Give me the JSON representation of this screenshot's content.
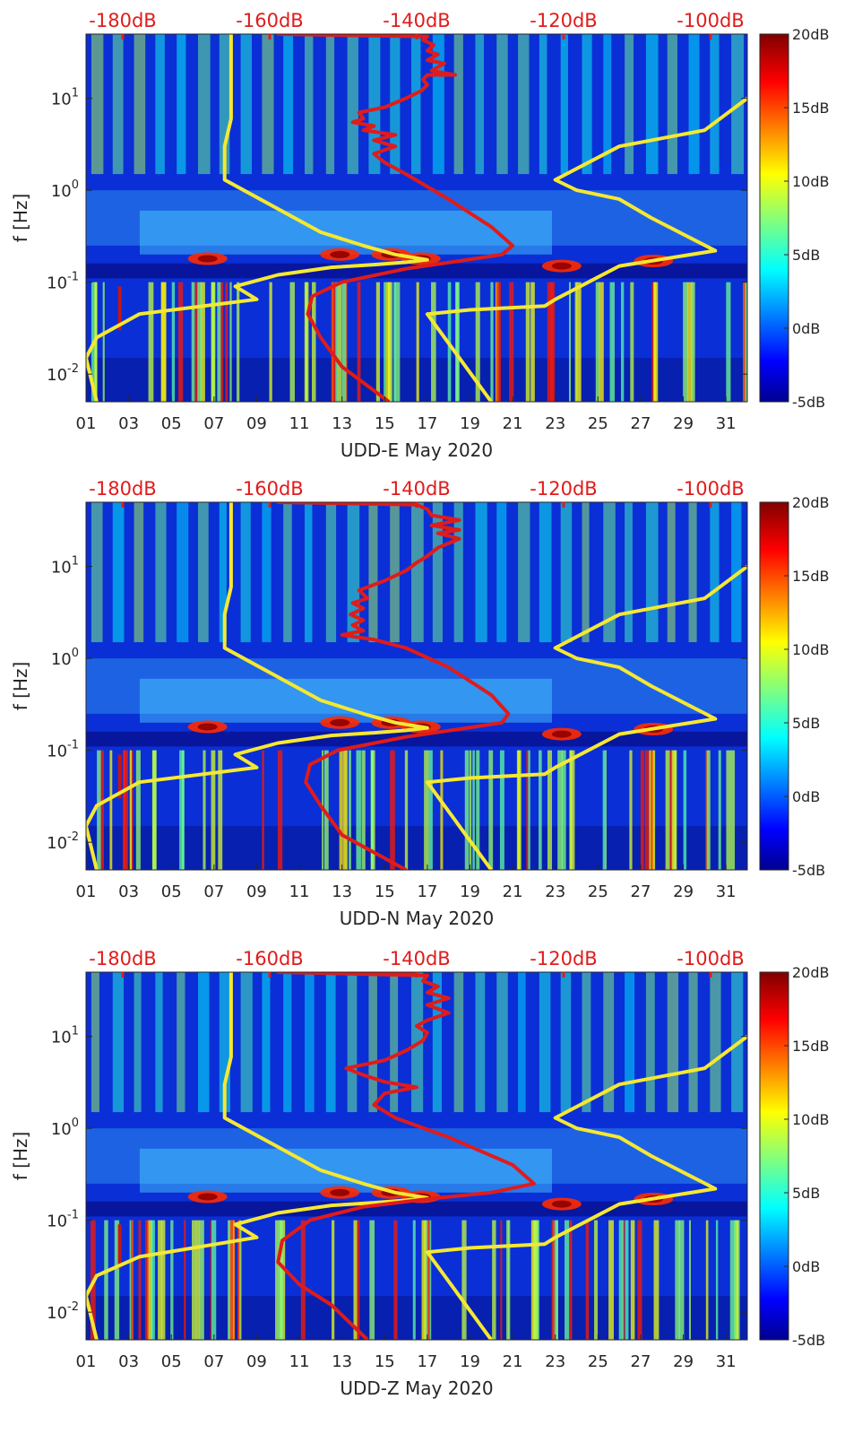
{
  "chart_data": [
    {
      "type": "heatmap",
      "xlabel": "UDD-E May 2020",
      "ylabel": "f [Hz]",
      "x_ticks": [
        "01",
        "03",
        "05",
        "07",
        "09",
        "11",
        "13",
        "15",
        "17",
        "19",
        "21",
        "23",
        "25",
        "27",
        "29",
        "31"
      ],
      "x_range_days": [
        1,
        32
      ],
      "y_scale": "log",
      "ylim": [
        0.005,
        50
      ],
      "y_ticks": [
        {
          "v": 0.01,
          "b": "10",
          "e": "-2"
        },
        {
          "v": 0.1,
          "b": "10",
          "e": "-1"
        },
        {
          "v": 1,
          "b": "10",
          "e": "0"
        },
        {
          "v": 10,
          "b": "10",
          "e": "1"
        }
      ],
      "colorbar": {
        "colormap": "jet",
        "range": [
          -5,
          20
        ],
        "ticks": [
          "20dB",
          "15dB",
          "10dB",
          "5dB",
          "0dB",
          "-5dB"
        ]
      },
      "top_axis": {
        "color": "#e01b1b",
        "range_db": [
          -185,
          -95
        ],
        "ticks": [
          "-180dB",
          "-160dB",
          "-140dB",
          "-120dB",
          "-100dB"
        ]
      },
      "series": [
        {
          "color": "#f5e832",
          "x": [
            1.5,
            1.0,
            1.5,
            3.5,
            9.0,
            8.0,
            10.0,
            12.5,
            14.5,
            16.0,
            17.0,
            15.5,
            14.0,
            12.0,
            7.5,
            7.5,
            7.8,
            7.8,
            7.8
          ],
          "y": [
            0.005,
            0.015,
            0.025,
            0.045,
            0.065,
            0.09,
            0.12,
            0.145,
            0.155,
            0.165,
            0.175,
            0.2,
            0.25,
            0.35,
            1.3,
            3.0,
            6.0,
            10.0,
            50.0
          ]
        },
        {
          "color": "#f5e832",
          "x": [
            20.0,
            17.0,
            19.0,
            22.5,
            23.0,
            26.0,
            30.5,
            27.5,
            26.0,
            24.0,
            23.0,
            26.0,
            30.0,
            32.0
          ],
          "y": [
            0.005,
            0.045,
            0.05,
            0.055,
            0.065,
            0.15,
            0.22,
            0.5,
            0.8,
            1.0,
            1.3,
            3.0,
            4.5,
            10.0
          ]
        },
        {
          "color": "#e01b1b",
          "x": [
            15.2,
            13.0,
            12.0,
            11.4,
            11.6,
            13.0,
            16.0,
            18.5,
            20.5,
            21.0,
            20.0,
            18.0,
            16.0,
            15.0,
            14.5,
            15.5,
            14.5,
            15.5,
            14.0,
            14.5,
            13.5,
            14.0,
            13.8,
            15.0,
            16.0,
            16.7,
            17.0,
            16.8,
            17.0,
            18.3,
            17.2,
            17.8,
            17.0,
            17.5,
            17.0,
            17.3,
            16.8,
            17.0,
            10.0,
            11.5,
            15.0,
            16.5
          ],
          "y": [
            0.005,
            0.012,
            0.025,
            0.045,
            0.07,
            0.1,
            0.14,
            0.17,
            0.2,
            0.25,
            0.4,
            0.8,
            1.5,
            2.0,
            2.5,
            3.0,
            3.5,
            4.0,
            4.5,
            5.0,
            5.5,
            6.0,
            7.0,
            8.0,
            10.0,
            12.0,
            14.0,
            16.0,
            18.0,
            18.0,
            20.0,
            24.0,
            26.0,
            30.0,
            33.0,
            38.0,
            43.0,
            47.0,
            50.0,
            50.0,
            50.0,
            50.0
          ]
        }
      ]
    },
    {
      "type": "heatmap",
      "xlabel": "UDD-N May 2020",
      "ylabel": "f [Hz]",
      "x_ticks": [
        "01",
        "03",
        "05",
        "07",
        "09",
        "11",
        "13",
        "15",
        "17",
        "19",
        "21",
        "23",
        "25",
        "27",
        "29",
        "31"
      ],
      "x_range_days": [
        1,
        32
      ],
      "y_scale": "log",
      "ylim": [
        0.005,
        50
      ],
      "y_ticks": [
        {
          "v": 0.01,
          "b": "10",
          "e": "-2"
        },
        {
          "v": 0.1,
          "b": "10",
          "e": "-1"
        },
        {
          "v": 1,
          "b": "10",
          "e": "0"
        },
        {
          "v": 10,
          "b": "10",
          "e": "1"
        }
      ],
      "colorbar": {
        "colormap": "jet",
        "range": [
          -5,
          20
        ],
        "ticks": [
          "20dB",
          "15dB",
          "10dB",
          "5dB",
          "0dB",
          "-5dB"
        ]
      },
      "top_axis": {
        "color": "#e01b1b",
        "range_db": [
          -185,
          -95
        ],
        "ticks": [
          "-180dB",
          "-160dB",
          "-140dB",
          "-120dB",
          "-100dB"
        ]
      },
      "series": [
        {
          "color": "#f5e832",
          "x": [
            1.5,
            1.0,
            1.5,
            3.5,
            9.0,
            8.0,
            10.0,
            12.5,
            14.5,
            16.0,
            17.0,
            15.5,
            14.0,
            12.0,
            7.5,
            7.5,
            7.8,
            7.8,
            7.8
          ],
          "y": [
            0.005,
            0.015,
            0.025,
            0.045,
            0.065,
            0.09,
            0.12,
            0.145,
            0.155,
            0.165,
            0.175,
            0.2,
            0.25,
            0.35,
            1.3,
            3.0,
            6.0,
            10.0,
            50.0
          ]
        },
        {
          "color": "#f5e832",
          "x": [
            20.0,
            17.0,
            19.0,
            22.5,
            23.0,
            26.0,
            30.5,
            27.5,
            26.0,
            24.0,
            23.0,
            26.0,
            30.0,
            32.0
          ],
          "y": [
            0.005,
            0.045,
            0.05,
            0.055,
            0.065,
            0.15,
            0.22,
            0.5,
            0.8,
            1.0,
            1.3,
            3.0,
            4.5,
            10.0
          ]
        },
        {
          "color": "#e01b1b",
          "x": [
            16.0,
            13.0,
            12.0,
            11.3,
            11.5,
            12.8,
            16.0,
            18.5,
            20.5,
            20.8,
            20.0,
            18.0,
            16.0,
            14.5,
            13.0,
            14.0,
            13.5,
            14.0,
            13.4,
            14.0,
            13.5,
            14.2,
            13.8,
            15.0,
            16.0,
            16.5,
            17.0,
            17.5,
            18.5,
            17.5,
            18.5,
            17.2,
            18.5,
            17.2,
            17.0,
            16.5,
            10.0,
            12.0,
            14.5,
            16.5
          ],
          "y": [
            0.005,
            0.012,
            0.025,
            0.045,
            0.07,
            0.1,
            0.14,
            0.17,
            0.2,
            0.25,
            0.4,
            0.8,
            1.3,
            1.6,
            1.8,
            2.0,
            2.3,
            2.6,
            3.0,
            3.5,
            4.0,
            4.5,
            5.5,
            7.0,
            9.0,
            11.0,
            13.0,
            16.0,
            20.0,
            23.0,
            25.0,
            28.0,
            32.0,
            36.0,
            42.0,
            47.0,
            50.0,
            50.0,
            50.0,
            50.0
          ]
        }
      ]
    },
    {
      "type": "heatmap",
      "xlabel": "UDD-Z May 2020",
      "ylabel": "f [Hz]",
      "x_ticks": [
        "01",
        "03",
        "05",
        "07",
        "09",
        "11",
        "13",
        "15",
        "17",
        "19",
        "21",
        "23",
        "25",
        "27",
        "29",
        "31"
      ],
      "x_range_days": [
        1,
        32
      ],
      "y_scale": "log",
      "ylim": [
        0.005,
        50
      ],
      "y_ticks": [
        {
          "v": 0.01,
          "b": "10",
          "e": "-2"
        },
        {
          "v": 0.1,
          "b": "10",
          "e": "-1"
        },
        {
          "v": 1,
          "b": "10",
          "e": "0"
        },
        {
          "v": 10,
          "b": "10",
          "e": "1"
        }
      ],
      "colorbar": {
        "colormap": "jet",
        "range": [
          -5,
          20
        ],
        "ticks": [
          "20dB",
          "15dB",
          "10dB",
          "5dB",
          "0dB",
          "-5dB"
        ]
      },
      "top_axis": {
        "color": "#e01b1b",
        "range_db": [
          -185,
          -95
        ],
        "ticks": [
          "-180dB",
          "-160dB",
          "-140dB",
          "-120dB",
          "-100dB"
        ]
      },
      "series": [
        {
          "color": "#f5e832",
          "x": [
            1.5,
            1.0,
            1.5,
            3.5,
            9.0,
            8.0,
            10.0,
            12.5,
            14.5,
            16.0,
            17.0,
            15.5,
            14.0,
            12.0,
            7.5,
            7.5,
            7.8,
            7.8,
            7.8
          ],
          "y": [
            0.005,
            0.015,
            0.025,
            0.04,
            0.065,
            0.09,
            0.12,
            0.145,
            0.155,
            0.165,
            0.175,
            0.2,
            0.25,
            0.35,
            1.3,
            3.0,
            6.0,
            10.0,
            50.0
          ]
        },
        {
          "color": "#f5e832",
          "x": [
            20.0,
            17.0,
            19.0,
            22.5,
            23.0,
            26.0,
            30.5,
            27.5,
            26.0,
            24.0,
            23.0,
            26.0,
            30.0,
            32.0
          ],
          "y": [
            0.005,
            0.045,
            0.05,
            0.055,
            0.065,
            0.15,
            0.22,
            0.5,
            0.8,
            1.0,
            1.3,
            3.0,
            4.5,
            10.0
          ]
        },
        {
          "color": "#e01b1b",
          "x": [
            14.2,
            12.5,
            11.0,
            10.0,
            10.2,
            11.5,
            14.0,
            17.0,
            20.0,
            22.0,
            21.0,
            18.0,
            15.5,
            14.5,
            15.0,
            16.5,
            15.0,
            14.0,
            13.2,
            15.0,
            16.0,
            16.8,
            17.0,
            16.5,
            17.0,
            18.0,
            17.0,
            18.0,
            17.0,
            17.5,
            16.8,
            17.0,
            10.0,
            12.0,
            15.0,
            16.5
          ],
          "y": [
            0.005,
            0.012,
            0.02,
            0.035,
            0.06,
            0.1,
            0.14,
            0.17,
            0.2,
            0.25,
            0.4,
            0.8,
            1.3,
            1.8,
            2.4,
            2.8,
            3.2,
            3.8,
            4.5,
            5.5,
            7.0,
            9.0,
            11.0,
            13.0,
            15.0,
            18.0,
            22.0,
            26.0,
            30.0,
            35.0,
            40.0,
            46.0,
            50.0,
            50.0,
            50.0,
            50.0
          ]
        }
      ]
    }
  ]
}
